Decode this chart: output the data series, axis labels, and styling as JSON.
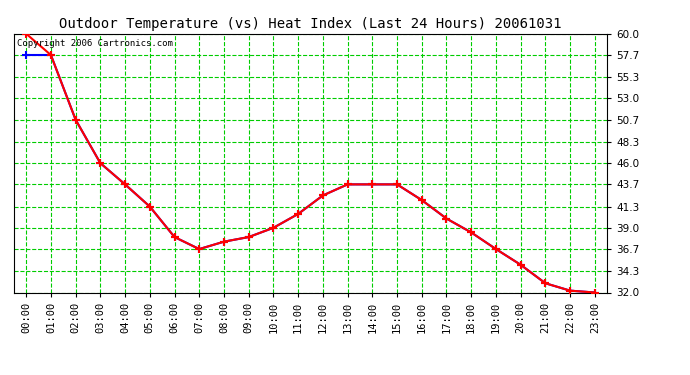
{
  "title": "Outdoor Temperature (vs) Heat Index (Last 24 Hours) 20061031",
  "copyright": "Copyright 2006 Cartronics.com",
  "grid_color": "#00cc00",
  "x_labels": [
    "00:00",
    "01:00",
    "02:00",
    "03:00",
    "04:00",
    "05:00",
    "06:00",
    "07:00",
    "08:00",
    "09:00",
    "10:00",
    "11:00",
    "12:00",
    "13:00",
    "14:00",
    "15:00",
    "16:00",
    "17:00",
    "18:00",
    "19:00",
    "20:00",
    "21:00",
    "22:00",
    "23:00"
  ],
  "y_ticks": [
    32.0,
    34.3,
    36.7,
    39.0,
    41.3,
    43.7,
    46.0,
    48.3,
    50.7,
    53.0,
    55.3,
    57.7,
    60.0
  ],
  "temp_color": "#ff0000",
  "heat_color": "#0000ff",
  "temp_data": [
    60.0,
    57.7,
    50.7,
    46.0,
    43.7,
    41.3,
    38.0,
    36.7,
    37.5,
    38.0,
    39.0,
    40.5,
    42.5,
    43.7,
    43.7,
    43.7,
    42.0,
    40.0,
    38.5,
    36.7,
    35.0,
    33.0,
    32.2,
    32.0
  ],
  "heat_data": [
    57.7,
    57.7,
    50.7,
    46.0,
    43.7,
    41.3,
    38.0,
    36.7,
    37.5,
    38.0,
    39.0,
    40.5,
    42.5,
    43.7,
    43.7,
    43.7,
    42.0,
    40.0,
    38.5,
    36.7,
    35.0,
    33.0,
    32.2,
    32.0
  ],
  "title_fontsize": 10,
  "copyright_fontsize": 6.5,
  "tick_fontsize": 7.5,
  "ylim": [
    32.0,
    60.0
  ],
  "xlim": [
    -0.5,
    23.5
  ]
}
